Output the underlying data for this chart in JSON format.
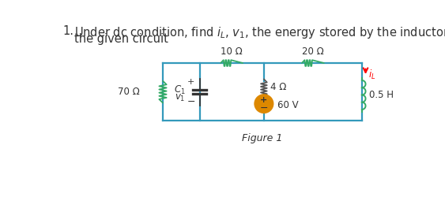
{
  "bg_color": "#ffffff",
  "circuit_color": "#3399bb",
  "resistor_color": "#33aa66",
  "wire_color": "#3399bb",
  "resistor_70_label": "70 Ω",
  "resistor_10_label": "10 Ω",
  "resistor_20_label": "20 Ω",
  "resistor_4_label": "4 Ω",
  "inductor_label": "0.5 H",
  "voltage_label": "60 V",
  "iL_label": "i_L",
  "figure_label": "Figure 1",
  "font_size_title": 10.5,
  "font_size_labels": 8.5,
  "lw_wire": 1.6
}
